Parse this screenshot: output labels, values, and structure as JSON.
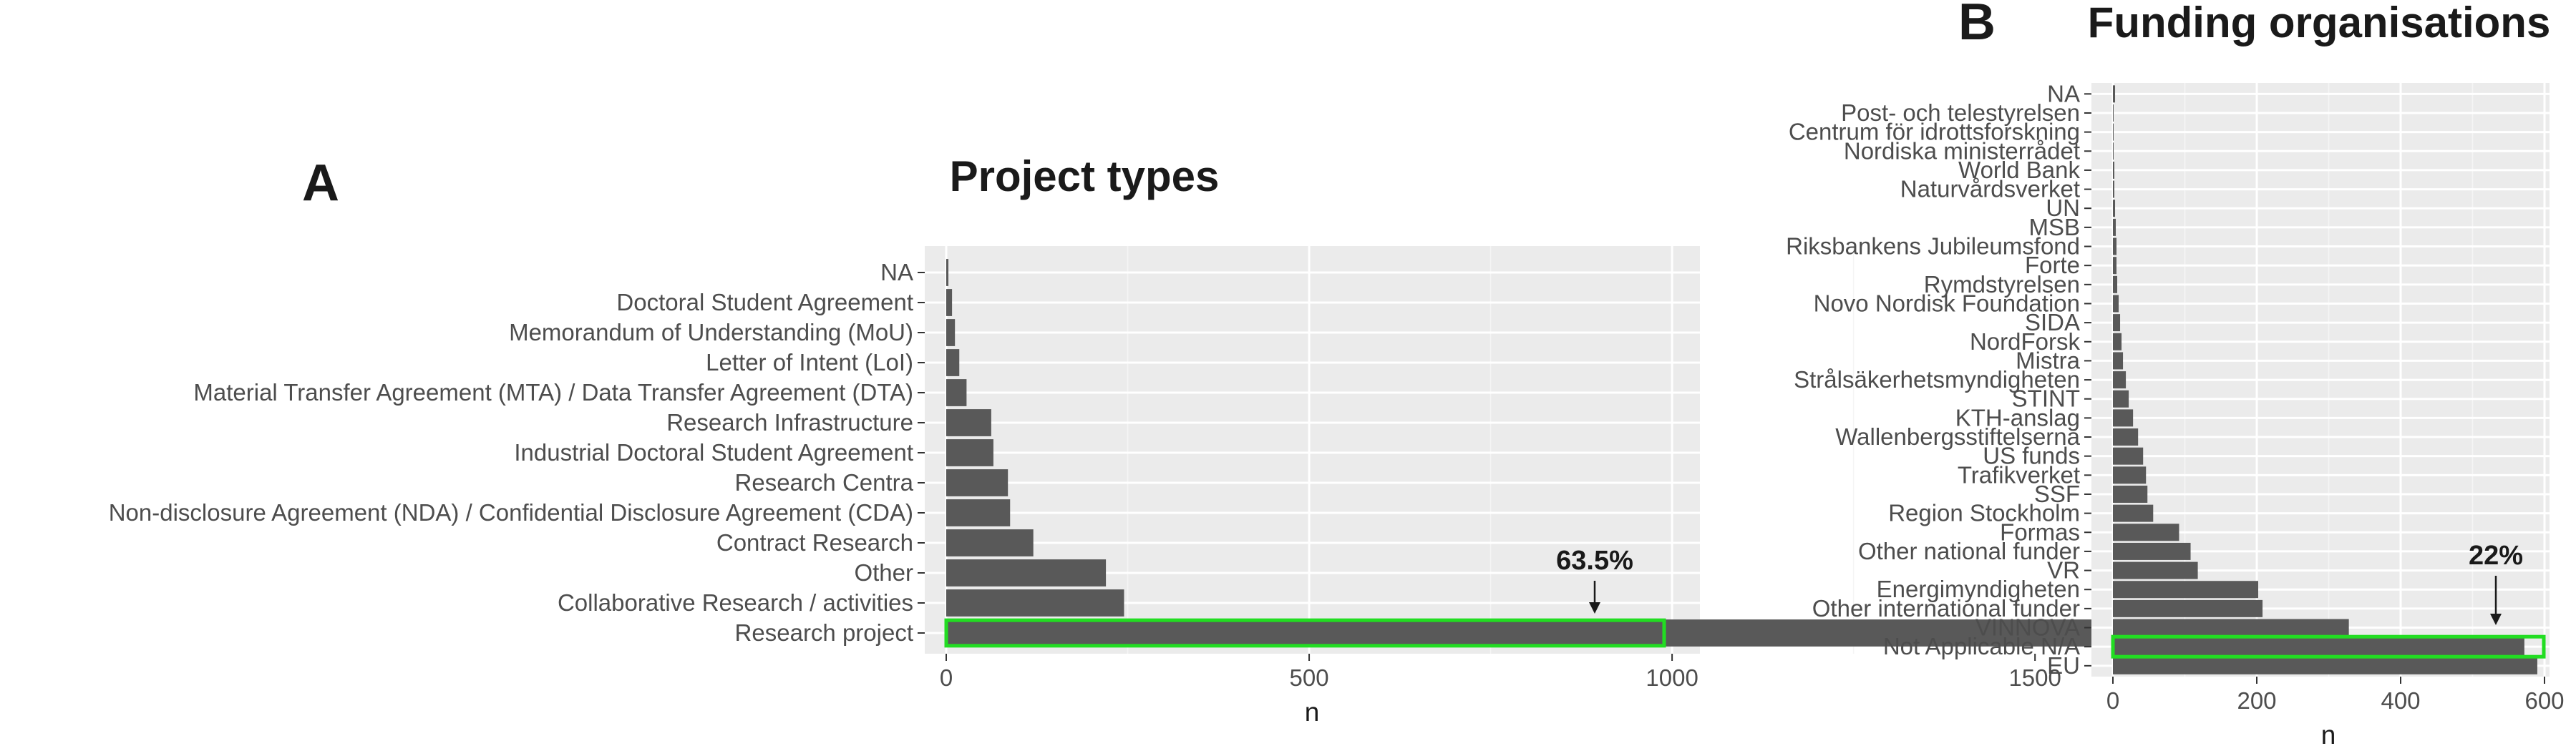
{
  "chart_data": [
    {
      "type": "bar",
      "orientation": "horizontal",
      "tag": "A",
      "title": "Project types",
      "xlabel": "n",
      "ylabel": "",
      "xlim": [
        0,
        1700
      ],
      "xticks": [
        0,
        500,
        1000,
        1500
      ],
      "xtick_labels": [
        "0",
        "500",
        "1000",
        "1500"
      ],
      "categories": [
        "NA",
        "Doctoral Student Agreement",
        "Memorandum of Understanding (MoU)",
        "Letter of Intent (LoI)",
        "Material Transfer Agreement (MTA) / Data Transfer Agreement (DTA)",
        "Research Infrastructure",
        "Industrial Doctoral Student Agreement",
        "Research Centra",
        "Non-disclosure Agreement (NDA) / Confidential Disclosure Agreement (CDA)",
        "Contract Research",
        "Other",
        "Collaborative Research / activities",
        "Research project"
      ],
      "values": [
        3,
        8,
        12,
        18,
        28,
        62,
        65,
        85,
        88,
        120,
        220,
        245,
        1665
      ],
      "highlight": {
        "category": "Research project",
        "label": "63.5%",
        "color": "#22dd22"
      }
    },
    {
      "type": "bar",
      "orientation": "horizontal",
      "tag": "B",
      "title": "Funding organisations",
      "xlabel": "n",
      "ylabel": "",
      "xlim": [
        0,
        600
      ],
      "xticks": [
        0,
        200,
        400,
        600
      ],
      "xtick_labels": [
        "0",
        "200",
        "400",
        "600"
      ],
      "categories": [
        "NA",
        "Post- och telestyrelsen",
        "Centrum för idrottsforskning",
        "Nordiska ministerrådet",
        "World Bank",
        "Naturvårdsverket",
        "UN",
        "MSB",
        "Riksbankens Jubileumsfond",
        "Forte",
        "Rymdstyrelsen",
        "Novo Nordisk Foundation",
        "SIDA",
        "NordForsk",
        "Mistra",
        "Strålsäkerhetsmyndigheten",
        "STINT",
        "KTH-anslag",
        "Wallenbergsstiftelserna",
        "US funds",
        "Trafikverket",
        "SSF",
        "Region Stockholm",
        "Formas",
        "Other national funder",
        "VR",
        "Energimyndigheten",
        "Other international funder",
        "VINNOVA",
        "Not Applicable N/A",
        "EU"
      ],
      "values": [
        3,
        1,
        1,
        1,
        2,
        2,
        3,
        4,
        5,
        5,
        6,
        8,
        10,
        12,
        14,
        18,
        22,
        28,
        35,
        42,
        46,
        48,
        56,
        92,
        108,
        118,
        202,
        208,
        328,
        572,
        590
      ],
      "highlight": {
        "category": "Not Applicable N/A",
        "label": "22%",
        "color": "#22dd22"
      }
    }
  ]
}
